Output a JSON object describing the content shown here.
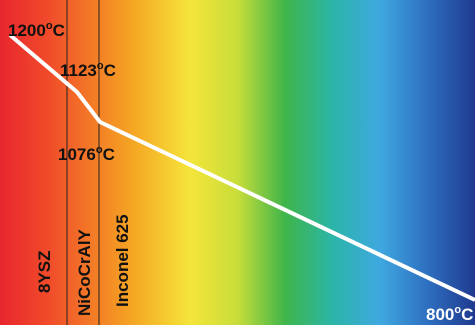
{
  "temperatures": {
    "t1": {
      "value": "1200",
      "unit": "C"
    },
    "t2": {
      "value": "1123",
      "unit": "C"
    },
    "t3": {
      "value": "1076",
      "unit": "C"
    },
    "t4": {
      "value": "800",
      "unit": "C"
    }
  },
  "degree_symbol": "o",
  "layers": [
    {
      "label": "8YSZ"
    },
    {
      "label": "NiCoCrAlY"
    },
    {
      "label": "Inconel 625"
    }
  ],
  "colors": {
    "profile_line": "#ffffff",
    "interface_line": "#222222",
    "gradient": [
      "#e8262d",
      "#f04a2a",
      "#f5a623",
      "#f5e53a",
      "#c8dd3a",
      "#3fb54a",
      "#2bb5a8",
      "#3fa8e0",
      "#2e6fc0",
      "#1f3a8f"
    ]
  }
}
